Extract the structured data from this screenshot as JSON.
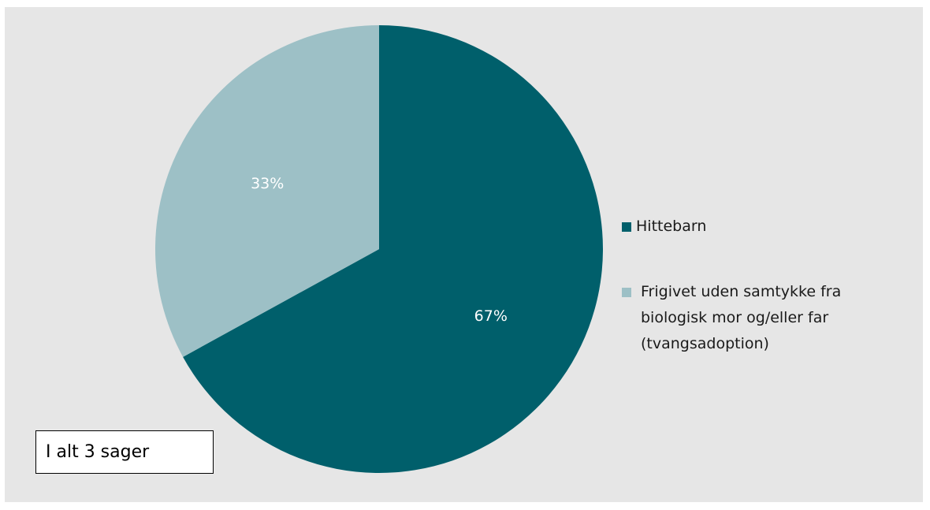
{
  "chart_data": {
    "type": "pie",
    "title": "",
    "slices": [
      {
        "name": "Hittebarn",
        "value": 67,
        "label": "67%",
        "color": "#005f6b"
      },
      {
        "name": "Frigivet uden samtykke fra biologisk mor og/eller far (tvangsadoption)",
        "value": 33,
        "label": "33%",
        "color": "#9dc0c6"
      }
    ],
    "legend_position": "right",
    "start_angle": "12 o'clock",
    "direction": "clockwise"
  },
  "annotation": {
    "total_text": "I alt 3 sager"
  },
  "colors": {
    "background": "#e6e6e6",
    "label_text": "#ffffff"
  }
}
